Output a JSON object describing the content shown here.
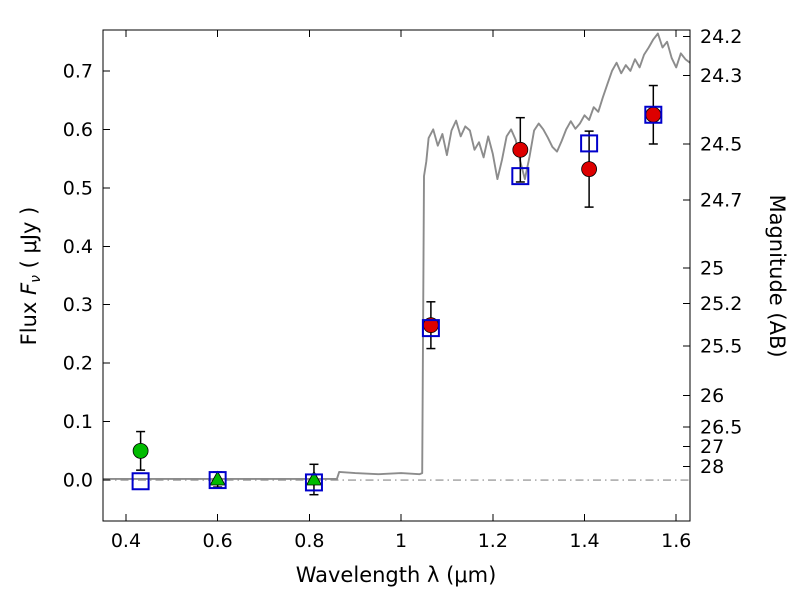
{
  "chart_data": {
    "type": "scatter",
    "title": "",
    "xlabel": "Wavelength  λ (μm)",
    "ylabel_left": {
      "prefix": "Flux  ",
      "symbol": "F",
      "subscript": "ν",
      "suffix": "  ( μJy )"
    },
    "ylabel_right": "Magnitude (AB)",
    "xlim": [
      0.35,
      1.63
    ],
    "ylim": [
      -0.07,
      0.77
    ],
    "grid": false,
    "legend": "none",
    "x_ticks": [
      {
        "v": 0.4,
        "label": "0.4"
      },
      {
        "v": 0.6,
        "label": "0.6"
      },
      {
        "v": 0.8,
        "label": "0.8"
      },
      {
        "v": 1.0,
        "label": "1"
      },
      {
        "v": 1.2,
        "label": "1.2"
      },
      {
        "v": 1.4,
        "label": "1.4"
      },
      {
        "v": 1.6,
        "label": "1.6"
      }
    ],
    "y_ticks_left": [
      {
        "v": 0.0,
        "label": "0.0"
      },
      {
        "v": 0.1,
        "label": "0.1"
      },
      {
        "v": 0.2,
        "label": "0.2"
      },
      {
        "v": 0.3,
        "label": "0.3"
      },
      {
        "v": 0.4,
        "label": "0.4"
      },
      {
        "v": 0.5,
        "label": "0.5"
      },
      {
        "v": 0.6,
        "label": "0.6"
      },
      {
        "v": 0.7,
        "label": "0.7"
      }
    ],
    "y_ticks_right": [
      {
        "v": 0.759,
        "label": "24.2"
      },
      {
        "v": 0.692,
        "label": "24.3"
      },
      {
        "v": 0.575,
        "label": "24.5"
      },
      {
        "v": 0.479,
        "label": "24.7"
      },
      {
        "v": 0.363,
        "label": "25"
      },
      {
        "v": 0.302,
        "label": "25.2"
      },
      {
        "v": 0.229,
        "label": "25.5"
      },
      {
        "v": 0.145,
        "label": "26"
      },
      {
        "v": 0.091,
        "label": "26.5"
      },
      {
        "v": 0.0575,
        "label": "27"
      },
      {
        "v": 0.0229,
        "label": "28"
      }
    ],
    "zero_line": {
      "y": 0.0,
      "color": "#888888",
      "style": "dashdot"
    },
    "model_spectrum": {
      "name": "model-spectrum",
      "color": "#8c8c8c",
      "points": [
        [
          0.35,
          0.002
        ],
        [
          0.86,
          0.002
        ],
        [
          0.865,
          0.014
        ],
        [
          0.9,
          0.012
        ],
        [
          0.95,
          0.01
        ],
        [
          1.0,
          0.012
        ],
        [
          1.04,
          0.01
        ],
        [
          1.046,
          0.012
        ],
        [
          1.05,
          0.52
        ],
        [
          1.055,
          0.545
        ],
        [
          1.06,
          0.585
        ],
        [
          1.07,
          0.6
        ],
        [
          1.08,
          0.572
        ],
        [
          1.09,
          0.592
        ],
        [
          1.1,
          0.556
        ],
        [
          1.11,
          0.598
        ],
        [
          1.12,
          0.615
        ],
        [
          1.13,
          0.588
        ],
        [
          1.14,
          0.605
        ],
        [
          1.15,
          0.598
        ],
        [
          1.16,
          0.565
        ],
        [
          1.17,
          0.578
        ],
        [
          1.18,
          0.552
        ],
        [
          1.19,
          0.588
        ],
        [
          1.2,
          0.558
        ],
        [
          1.21,
          0.515
        ],
        [
          1.22,
          0.548
        ],
        [
          1.23,
          0.588
        ],
        [
          1.24,
          0.6
        ],
        [
          1.25,
          0.582
        ],
        [
          1.26,
          0.545
        ],
        [
          1.27,
          0.515
        ],
        [
          1.28,
          0.553
        ],
        [
          1.29,
          0.598
        ],
        [
          1.3,
          0.61
        ],
        [
          1.31,
          0.6
        ],
        [
          1.32,
          0.586
        ],
        [
          1.33,
          0.57
        ],
        [
          1.34,
          0.562
        ],
        [
          1.35,
          0.58
        ],
        [
          1.36,
          0.6
        ],
        [
          1.37,
          0.614
        ],
        [
          1.38,
          0.601
        ],
        [
          1.39,
          0.61
        ],
        [
          1.4,
          0.624
        ],
        [
          1.41,
          0.616
        ],
        [
          1.42,
          0.638
        ],
        [
          1.43,
          0.63
        ],
        [
          1.44,
          0.655
        ],
        [
          1.45,
          0.678
        ],
        [
          1.46,
          0.7
        ],
        [
          1.47,
          0.714
        ],
        [
          1.48,
          0.696
        ],
        [
          1.49,
          0.71
        ],
        [
          1.5,
          0.7
        ],
        [
          1.51,
          0.72
        ],
        [
          1.52,
          0.706
        ],
        [
          1.53,
          0.728
        ],
        [
          1.54,
          0.74
        ],
        [
          1.55,
          0.754
        ],
        [
          1.56,
          0.764
        ],
        [
          1.57,
          0.74
        ],
        [
          1.58,
          0.75
        ],
        [
          1.59,
          0.722
        ],
        [
          1.6,
          0.706
        ],
        [
          1.61,
          0.73
        ],
        [
          1.62,
          0.72
        ],
        [
          1.63,
          0.714
        ]
      ]
    },
    "series": [
      {
        "name": "observed-green-circle",
        "marker": "circle",
        "fill": "#00bb00",
        "points": [
          {
            "x": 0.432,
            "y": 0.05,
            "err": 0.033
          }
        ]
      },
      {
        "name": "observed-green-triangle",
        "marker": "triangle",
        "fill": "#00bb00",
        "points": [
          {
            "x": 0.6,
            "y": 0.001,
            "err": 0.013
          },
          {
            "x": 0.81,
            "y": 0.001,
            "err": 0.026
          }
        ]
      },
      {
        "name": "observed-red-circle",
        "marker": "circle",
        "fill": "#dd0000",
        "points": [
          {
            "x": 1.065,
            "y": 0.265,
            "err": 0.04
          },
          {
            "x": 1.26,
            "y": 0.565,
            "err": 0.055
          },
          {
            "x": 1.41,
            "y": 0.532,
            "err": 0.065
          },
          {
            "x": 1.55,
            "y": 0.625,
            "err": 0.05
          }
        ]
      },
      {
        "name": "model-photometry-blue-square",
        "marker": "open-square",
        "stroke": "#0000cc",
        "points": [
          {
            "x": 0.432,
            "y": -0.002
          },
          {
            "x": 0.6,
            "y": 0.0
          },
          {
            "x": 0.81,
            "y": -0.004
          },
          {
            "x": 1.065,
            "y": 0.26
          },
          {
            "x": 1.26,
            "y": 0.52
          },
          {
            "x": 1.41,
            "y": 0.576
          },
          {
            "x": 1.55,
            "y": 0.625
          }
        ]
      }
    ]
  }
}
